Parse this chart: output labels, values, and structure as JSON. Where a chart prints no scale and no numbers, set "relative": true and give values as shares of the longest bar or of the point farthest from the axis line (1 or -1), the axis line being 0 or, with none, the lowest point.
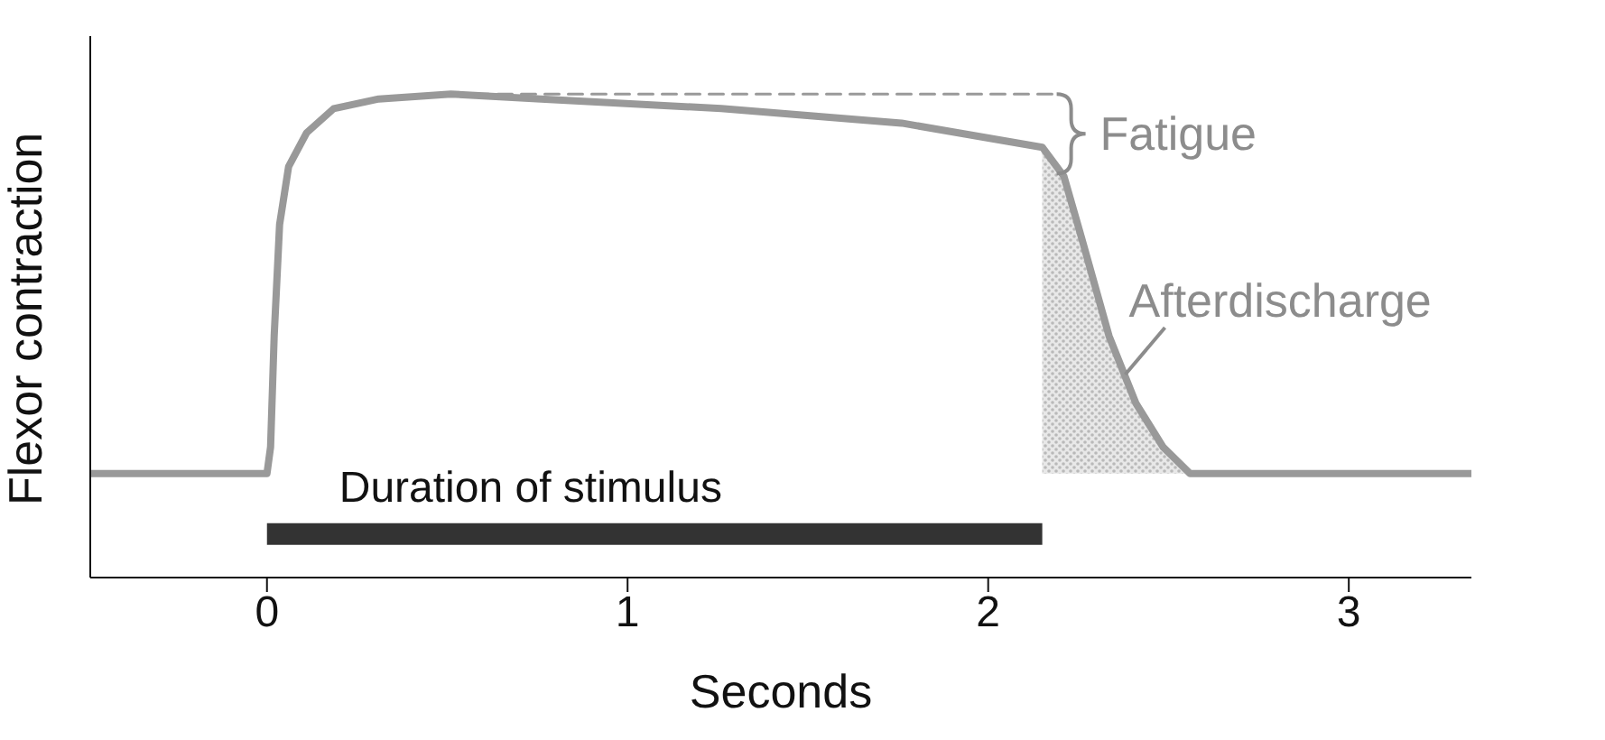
{
  "chart_data": {
    "type": "line",
    "relative": true,
    "xlabel": "Seconds",
    "ylabel": "Flexor contraction",
    "xlim": [
      -0.49,
      3.34
    ],
    "xticks": [
      0,
      1,
      2,
      3
    ],
    "grid": false,
    "legend": false,
    "marker": "none",
    "series": [
      {
        "type": "area",
        "color": "#8a8a8a",
        "x": [
          2.15,
          2.21,
          2.26,
          2.335,
          2.41,
          2.485,
          2.56
        ],
        "values": [
          0.89,
          0.83,
          0.7,
          0.5,
          0.36,
          0.27,
          0.215
        ]
      },
      {
        "color": "#999999",
        "line_style": "solid",
        "x": [
          -0.49,
          0,
          0.01,
          0.02,
          0.035,
          0.06,
          0.11,
          0.185,
          0.31,
          0.51,
          0.76,
          1.26,
          1.76,
          2.15,
          2.21,
          2.26,
          2.335,
          2.41,
          2.485,
          2.56,
          3.34
        ],
        "values": [
          0.215,
          0.215,
          0.27,
          0.5,
          0.73,
          0.85,
          0.92,
          0.97,
          0.99,
          1,
          0.99,
          0.97,
          0.94,
          0.89,
          0.83,
          0.7,
          0.5,
          0.36,
          0.27,
          0.215,
          0.215
        ]
      },
      {
        "color": "#999999",
        "line_style": "dashed",
        "x": [
          0.51,
          2.2
        ],
        "values": [
          1,
          1
        ]
      },
      {
        "name": "Duration of stimulus",
        "color": "#333333",
        "line_style": "solid",
        "x": [
          0,
          2.15
        ],
        "values": [
          0.09,
          0.09
        ]
      }
    ],
    "annotations": [
      "Fatigue",
      {
        "text": "Afterdischarge",
        "x": 2.38,
        "y": 0.42
      }
    ]
  }
}
